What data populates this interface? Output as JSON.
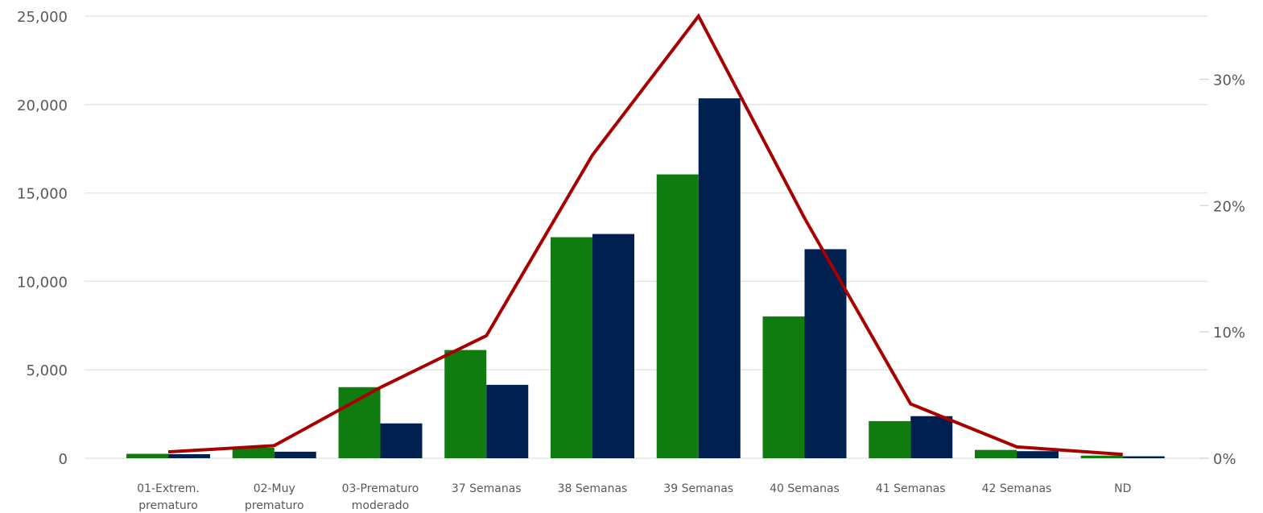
{
  "chart_data": {
    "type": "bar",
    "categories": [
      [
        "01-Extrem.",
        "prematuro"
      ],
      [
        "02-Muy",
        "prematuro"
      ],
      [
        "03-Prematuro",
        "moderado"
      ],
      [
        "37 Semanas"
      ],
      [
        "38 Semanas"
      ],
      [
        "39 Semanas"
      ],
      [
        "40 Semanas"
      ],
      [
        "41 Semanas"
      ],
      [
        "42 Semanas"
      ],
      [
        "ND"
      ]
    ],
    "series": [
      {
        "values": [
          250,
          600,
          4020,
          6120,
          12500,
          16050,
          8020,
          2100,
          470,
          150
        ],
        "color": "#107c10",
        "axis": "left"
      },
      {
        "values": [
          230,
          370,
          1970,
          4150,
          12680,
          20350,
          11820,
          2380,
          400,
          110
        ],
        "color": "#002050",
        "axis": "left"
      },
      {
        "type": "line",
        "values": [
          0.5,
          1.0,
          5.6,
          9.7,
          24.0,
          35.0,
          19.0,
          4.3,
          0.9,
          0.3
        ],
        "color": "#a80000",
        "axis": "right"
      }
    ],
    "y_left": {
      "ticks": [
        "0",
        "5,000",
        "10,000",
        "15,000",
        "20,000",
        "25,000"
      ],
      "values": [
        0,
        5000,
        10000,
        15000,
        20000,
        25000
      ],
      "range": [
        0,
        25000
      ]
    },
    "y_right": {
      "ticks": [
        "0%",
        "10%",
        "20%",
        "30%"
      ],
      "values": [
        0,
        10,
        20,
        30
      ],
      "range": [
        0,
        35
      ]
    },
    "grid": true,
    "legend": "none"
  }
}
